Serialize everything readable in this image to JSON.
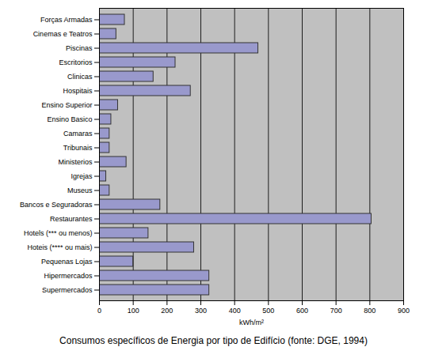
{
  "chart_data": {
    "type": "bar",
    "orientation": "horizontal",
    "title": "Consumos específicos de Energia por tipo de Edifício (fonte: DGE, 1994)",
    "x_label": "kWh/m²",
    "categories": [
      "Forças Armadas",
      "Cinemas e Teatros",
      "Piscinas",
      "Escritorios",
      "Clinicas",
      "Hospitais",
      "Ensino Superior",
      "Ensino Basico",
      "Camaras",
      "Tribunais",
      "Ministerios",
      "Igrejas",
      "Museus",
      "Bancos e Seguradoras",
      "Restaurantes",
      "Hotels (*** ou menos)",
      "Hoteis (**** ou mais)",
      "Pequenas Lojas",
      "Hipermercados",
      "Supermercados"
    ],
    "values": [
      75,
      50,
      470,
      225,
      160,
      270,
      55,
      35,
      30,
      30,
      80,
      20,
      30,
      180,
      805,
      145,
      280,
      100,
      325,
      325
    ],
    "color": "#9999cc",
    "xlim": [
      0,
      900
    ],
    "xticks": [
      0,
      100,
      200,
      300,
      400,
      500,
      600,
      700,
      800,
      900
    ],
    "grid": true
  }
}
